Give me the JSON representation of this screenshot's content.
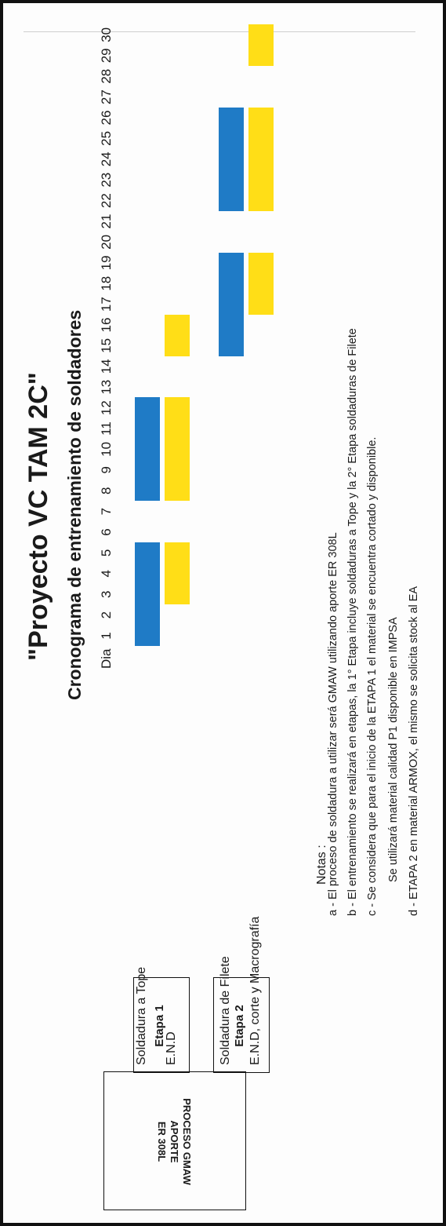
{
  "title": "\"Proyecto VC TAM 2C\"",
  "subtitle": "Cronograma de entrenamiento de soldadores",
  "process": {
    "line1": "PROCESO GMAW",
    "line2": "APORTE",
    "line3": "ER 308L"
  },
  "schedule": {
    "day_label": "Dia",
    "days": [
      "1",
      "2",
      "3",
      "4",
      "5",
      "6",
      "7",
      "8",
      "9",
      "10",
      "11",
      "12",
      "13",
      "14",
      "15",
      "16",
      "17",
      "18",
      "19",
      "20",
      "21",
      "22",
      "23",
      "24",
      "25",
      "26",
      "27",
      "28",
      "29",
      "30"
    ],
    "colors": {
      "welding": "#1f7bc6",
      "inspection": "#ffde17"
    }
  },
  "stages": [
    {
      "name": "Etapa 1",
      "tasks": [
        {
          "label": "Soldadura a Tope",
          "color": "blue",
          "spans": [
            [
              1,
              5
            ],
            [
              8,
              12
            ]
          ]
        },
        {
          "label": "E.N.D",
          "color": "yellow",
          "spans": [
            [
              3,
              5
            ],
            [
              8,
              12
            ],
            [
              15,
              16
            ]
          ]
        }
      ]
    },
    {
      "name": "Etapa 2",
      "tasks": [
        {
          "label": "Soldadura de Filete",
          "color": "blue",
          "spans": [
            [
              15,
              19
            ],
            [
              22,
              26
            ]
          ]
        },
        {
          "label": "E.N.D, corte y Macrografía",
          "color": "yellow",
          "spans": [
            [
              17,
              19
            ],
            [
              22,
              26
            ],
            [
              29,
              30
            ]
          ]
        }
      ]
    }
  ],
  "notes": {
    "title": "Notas :",
    "items": [
      "a -  El proceso de soldadura a utilizar será GMAW utilizando aporte ER 308L",
      "b -  El entrenamiento se realizará en etapas, la 1° Etapa incluye soldaduras a Tope y la 2° Etapa soldaduras de Filete",
      "c -  Se considera que para el inicio de la ETAPA 1 el material  se encuentra cortado y disponible.",
      "Se utilizará material calidad P1 disponible en IMPSA",
      "d -  ETAPA 2 en material ARMOX, el mismo se solicita stock al EA"
    ]
  }
}
